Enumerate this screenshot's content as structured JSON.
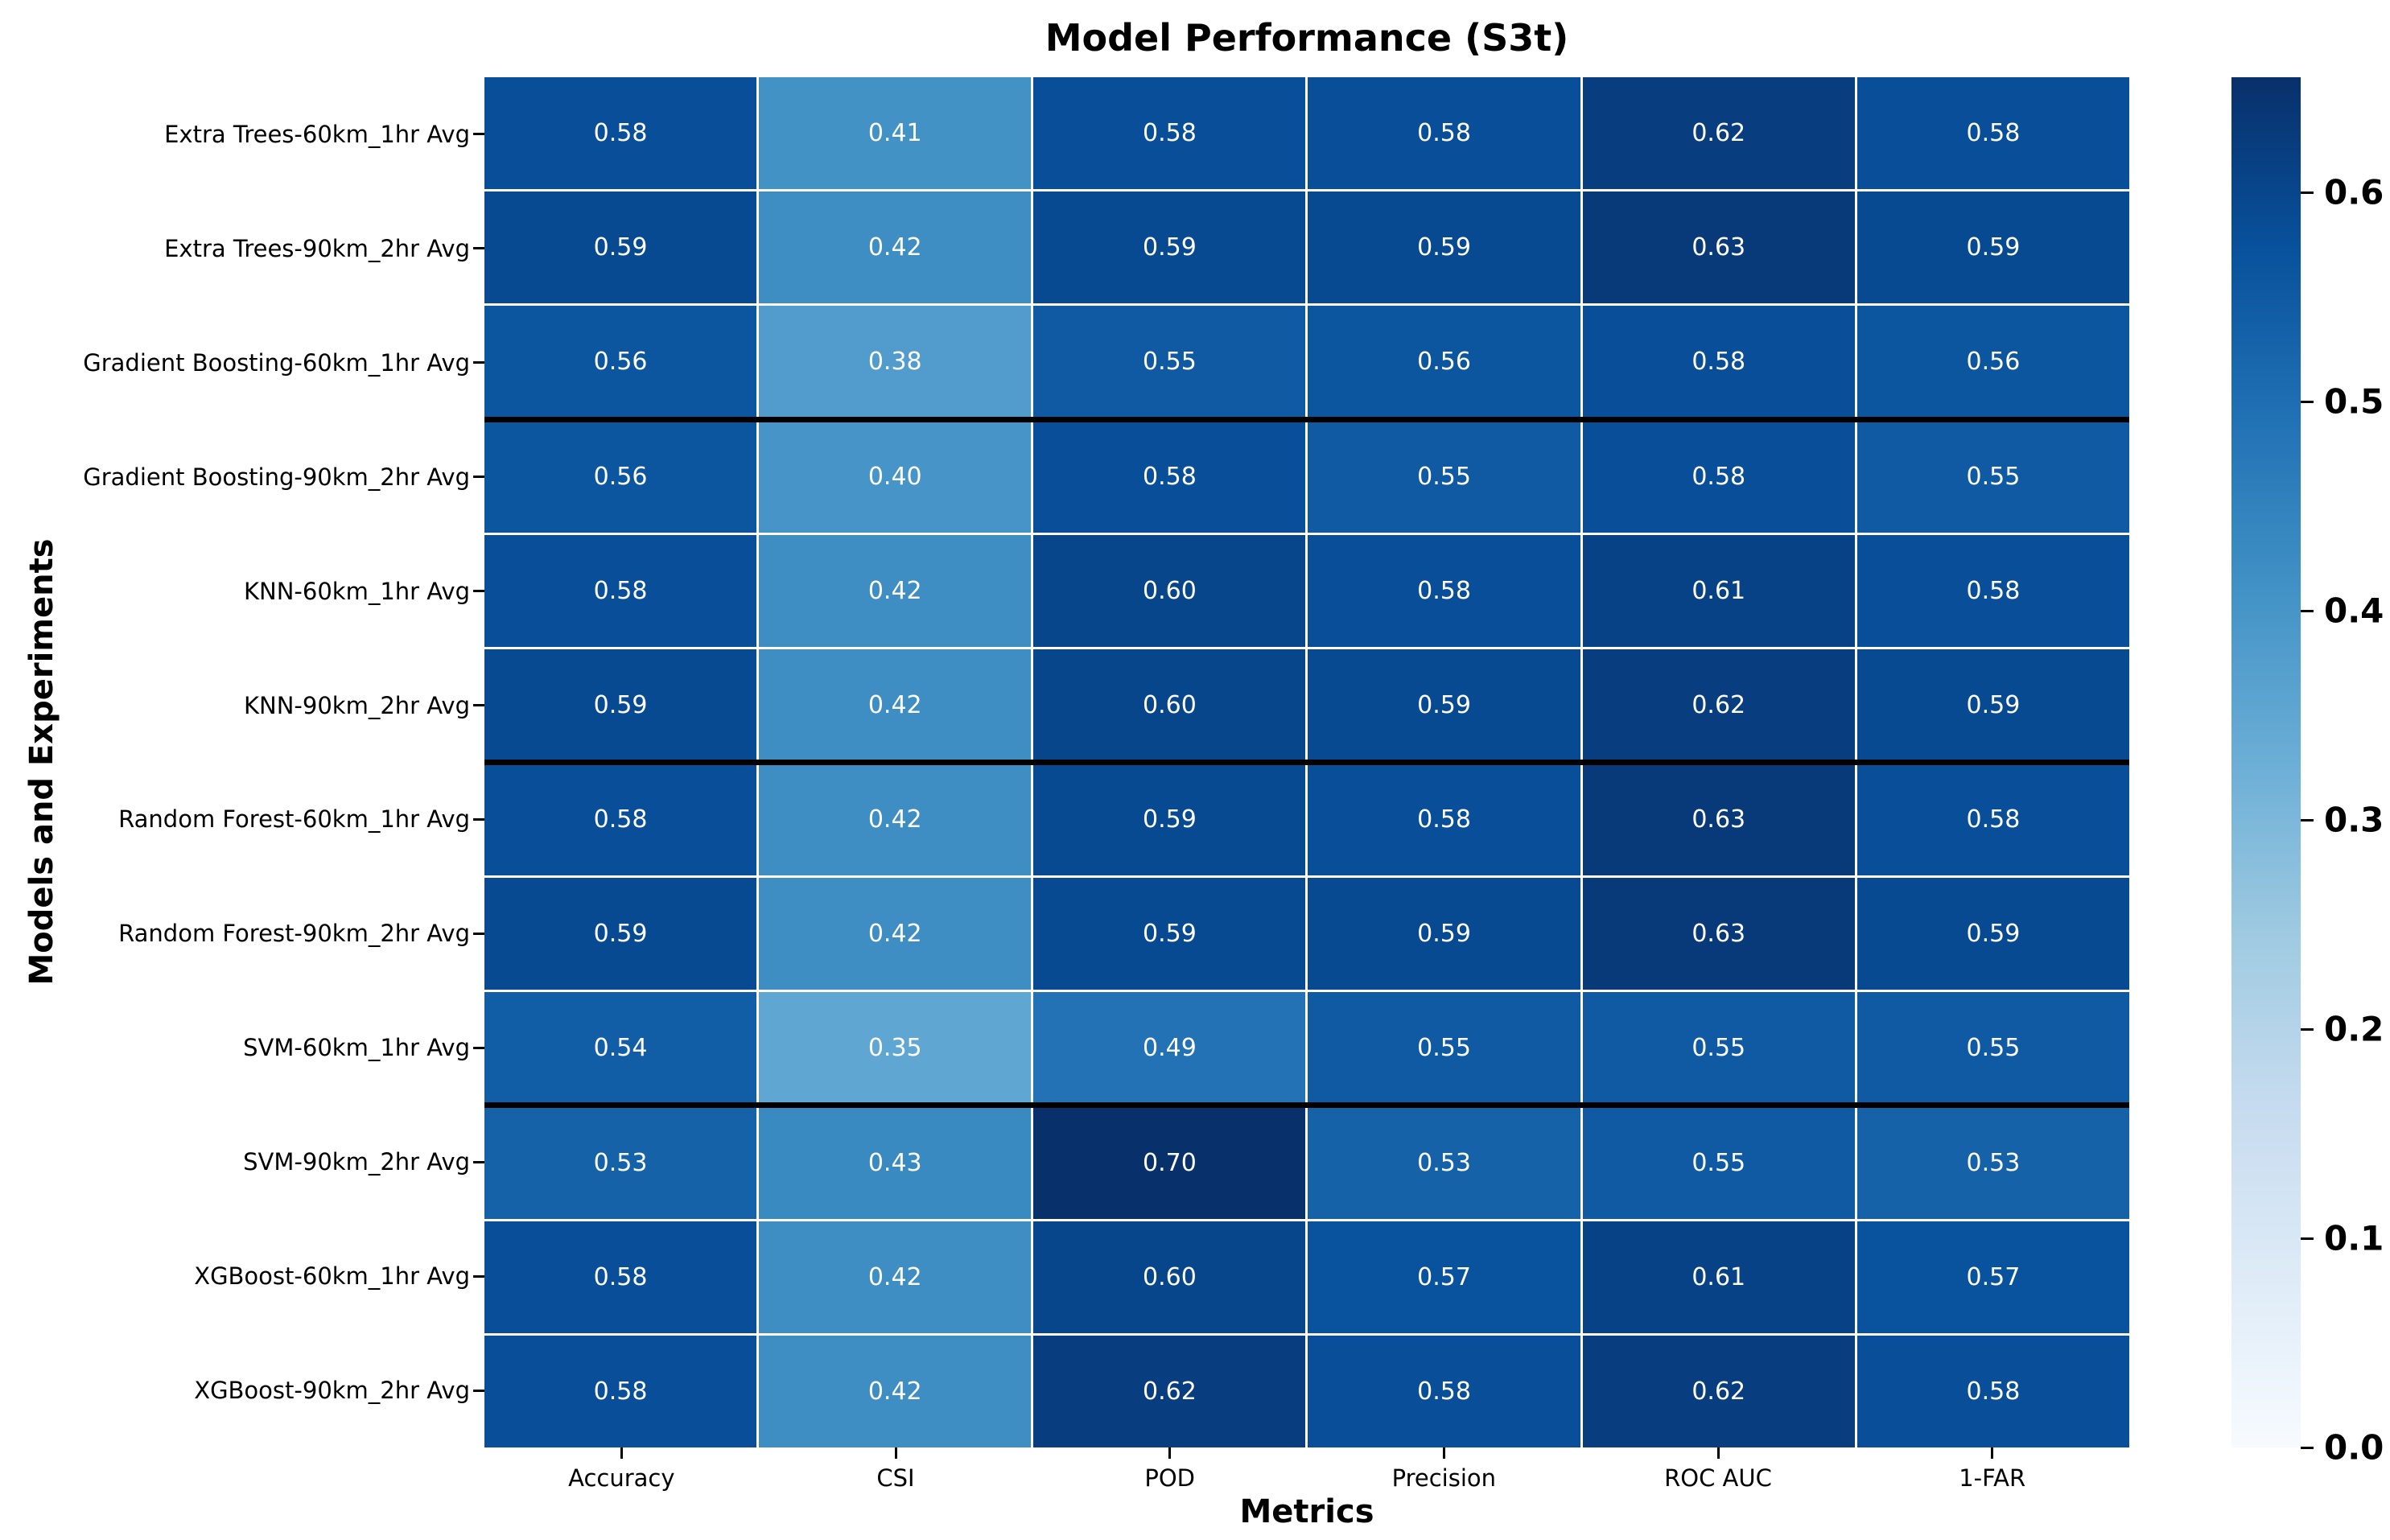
{
  "chart_data": {
    "type": "heatmap",
    "title": "Model Performance (S3t)",
    "xlabel": "Metrics",
    "ylabel": "Models and Experiments",
    "columns": [
      "Accuracy",
      "CSI",
      "POD",
      "Precision",
      "ROC AUC",
      "1-FAR"
    ],
    "rows": [
      "Extra Trees-60km_1hr Avg",
      "Extra Trees-90km_2hr Avg",
      "Gradient Boosting-60km_1hr Avg",
      "Gradient Boosting-90km_2hr Avg",
      "KNN-60km_1hr Avg",
      "KNN-90km_2hr Avg",
      "Random Forest-60km_1hr Avg",
      "Random Forest-90km_2hr Avg",
      "SVM-60km_1hr Avg",
      "SVM-90km_2hr Avg",
      "XGBoost-60km_1hr Avg",
      "XGBoost-90km_2hr Avg"
    ],
    "values": [
      [
        0.58,
        0.41,
        0.58,
        0.58,
        0.62,
        0.58
      ],
      [
        0.59,
        0.42,
        0.59,
        0.59,
        0.63,
        0.59
      ],
      [
        0.56,
        0.38,
        0.55,
        0.56,
        0.58,
        0.56
      ],
      [
        0.56,
        0.4,
        0.58,
        0.55,
        0.58,
        0.55
      ],
      [
        0.58,
        0.42,
        0.6,
        0.58,
        0.61,
        0.58
      ],
      [
        0.59,
        0.42,
        0.6,
        0.59,
        0.62,
        0.59
      ],
      [
        0.58,
        0.42,
        0.59,
        0.58,
        0.63,
        0.58
      ],
      [
        0.59,
        0.42,
        0.59,
        0.59,
        0.63,
        0.59
      ],
      [
        0.54,
        0.35,
        0.49,
        0.55,
        0.55,
        0.55
      ],
      [
        0.53,
        0.43,
        0.7,
        0.53,
        0.55,
        0.53
      ],
      [
        0.58,
        0.42,
        0.6,
        0.57,
        0.61,
        0.57
      ],
      [
        0.58,
        0.42,
        0.62,
        0.58,
        0.62,
        0.58
      ]
    ],
    "value_decimals": 2,
    "annotation_text_color": "#ffffff",
    "grid_line_color": "#ffffff",
    "separator_color": "#000000",
    "separator_after_row_indices": [
      2,
      5,
      8
    ],
    "colorbar": {
      "vmin": 0.0,
      "vmax": 0.655,
      "ticks": [
        0.0,
        0.1,
        0.2,
        0.3,
        0.4,
        0.5,
        0.6
      ],
      "tick_decimals": 1,
      "colormap": "Blues",
      "colormap_stops": [
        "#f7fbff",
        "#deebf7",
        "#c6dbef",
        "#9ecae1",
        "#6baed6",
        "#4292c6",
        "#2171b5",
        "#08519c",
        "#08306b"
      ]
    },
    "legend_position": "right",
    "grid": false
  }
}
